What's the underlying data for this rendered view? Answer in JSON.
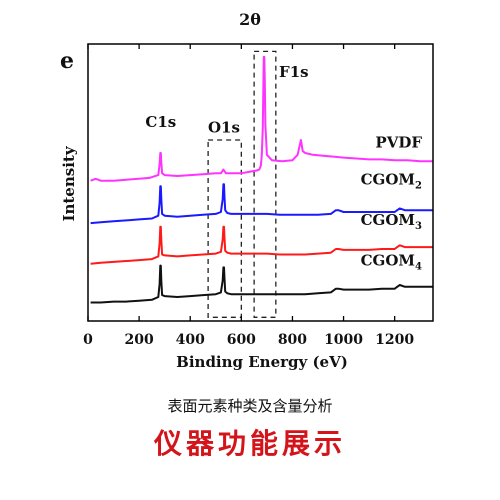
{
  "figure": {
    "cut_label": "2θ",
    "panel_label": "e",
    "caption": "表面元素种类及含量分析",
    "banner": "仪器功能展示"
  },
  "chart_data": {
    "type": "line",
    "xlabel": "Binding Energy (eV)",
    "ylabel": "Intensity",
    "xlim": [
      0,
      1350
    ],
    "xticks": [
      0,
      200,
      400,
      600,
      800,
      1000,
      1200
    ],
    "yticks": false,
    "grid": false,
    "legend": "none",
    "peak_labels": [
      {
        "text": "C1s",
        "x": 285
      },
      {
        "text": "O1s",
        "x": 532
      },
      {
        "text": "F1s",
        "x": 688
      }
    ],
    "dashed_regions": [
      [
        470,
        600
      ],
      [
        650,
        735
      ]
    ],
    "series": [
      {
        "name": "PVDF",
        "label": "PVDF",
        "label_sub": "",
        "color": "#ff33ff",
        "baseline": 0.76,
        "x": [
          10,
          30,
          50,
          100,
          150,
          200,
          240,
          275,
          280,
          283,
          285,
          287,
          290,
          300,
          350,
          400,
          450,
          500,
          520,
          530,
          535,
          540,
          560,
          600,
          640,
          660,
          670,
          676,
          680,
          684,
          686,
          688,
          690,
          692,
          694,
          700,
          720,
          760,
          800,
          820,
          830,
          833,
          835,
          840,
          850,
          880,
          920,
          960,
          1000,
          1050,
          1100,
          1150,
          1200,
          1250,
          1300,
          1350
        ],
        "y": [
          0.76,
          0.77,
          0.76,
          0.76,
          0.765,
          0.77,
          0.775,
          0.79,
          0.85,
          0.91,
          0.91,
          0.86,
          0.8,
          0.79,
          0.785,
          0.79,
          0.795,
          0.8,
          0.8,
          0.82,
          0.81,
          0.8,
          0.8,
          0.8,
          0.81,
          0.815,
          0.82,
          0.84,
          0.9,
          1.05,
          1.25,
          1.43,
          1.43,
          1.3,
          1.06,
          0.9,
          0.87,
          0.865,
          0.87,
          0.9,
          0.96,
          0.98,
          0.965,
          0.92,
          0.91,
          0.9,
          0.895,
          0.89,
          0.885,
          0.88,
          0.875,
          0.875,
          0.87,
          0.87,
          0.865,
          0.865
        ]
      },
      {
        "name": "CGOM2",
        "label": "CGOM",
        "label_sub": "2",
        "color": "#1a1aff",
        "baseline": 0.53,
        "x": [
          10,
          50,
          100,
          150,
          200,
          250,
          275,
          280,
          283,
          285,
          287,
          290,
          300,
          350,
          400,
          450,
          500,
          520,
          527,
          530,
          532,
          534,
          537,
          545,
          560,
          600,
          650,
          700,
          750,
          800,
          850,
          900,
          950,
          970,
          980,
          1000,
          1050,
          1100,
          1150,
          1200,
          1210,
          1220,
          1240,
          1300,
          1350
        ],
        "y": [
          0.53,
          0.535,
          0.54,
          0.545,
          0.55,
          0.555,
          0.57,
          0.64,
          0.73,
          0.73,
          0.66,
          0.58,
          0.57,
          0.565,
          0.57,
          0.575,
          0.58,
          0.59,
          0.66,
          0.74,
          0.74,
          0.67,
          0.6,
          0.585,
          0.58,
          0.58,
          0.58,
          0.58,
          0.575,
          0.575,
          0.575,
          0.575,
          0.58,
          0.6,
          0.6,
          0.59,
          0.59,
          0.59,
          0.59,
          0.59,
          0.6,
          0.61,
          0.6,
          0.6,
          0.6
        ]
      },
      {
        "name": "CGOM3",
        "label": "CGOM",
        "label_sub": "3",
        "color": "#ff1a1a",
        "baseline": 0.31,
        "x": [
          10,
          50,
          100,
          150,
          200,
          250,
          275,
          280,
          283,
          285,
          287,
          290,
          300,
          350,
          400,
          450,
          500,
          520,
          527,
          530,
          532,
          534,
          537,
          545,
          560,
          600,
          650,
          700,
          750,
          800,
          850,
          900,
          950,
          970,
          980,
          1000,
          1050,
          1100,
          1150,
          1200,
          1210,
          1220,
          1240,
          1300,
          1350
        ],
        "y": [
          0.31,
          0.315,
          0.32,
          0.325,
          0.33,
          0.335,
          0.35,
          0.42,
          0.51,
          0.51,
          0.44,
          0.36,
          0.355,
          0.35,
          0.355,
          0.36,
          0.365,
          0.375,
          0.44,
          0.51,
          0.51,
          0.45,
          0.38,
          0.37,
          0.365,
          0.365,
          0.365,
          0.365,
          0.36,
          0.36,
          0.36,
          0.365,
          0.37,
          0.39,
          0.39,
          0.385,
          0.385,
          0.385,
          0.39,
          0.39,
          0.4,
          0.41,
          0.4,
          0.4,
          0.4
        ]
      },
      {
        "name": "CGOM4",
        "label": "CGOM",
        "label_sub": "4",
        "color": "#111111",
        "baseline": 0.1,
        "x": [
          10,
          50,
          100,
          150,
          200,
          250,
          275,
          280,
          283,
          285,
          287,
          290,
          300,
          350,
          400,
          450,
          500,
          520,
          527,
          530,
          532,
          534,
          537,
          545,
          560,
          600,
          650,
          700,
          750,
          800,
          850,
          900,
          950,
          970,
          980,
          1000,
          1050,
          1100,
          1150,
          1200,
          1210,
          1220,
          1240,
          1300,
          1350
        ],
        "y": [
          0.1,
          0.1,
          0.105,
          0.105,
          0.11,
          0.115,
          0.13,
          0.2,
          0.3,
          0.3,
          0.22,
          0.14,
          0.135,
          0.13,
          0.135,
          0.14,
          0.145,
          0.155,
          0.22,
          0.29,
          0.29,
          0.23,
          0.16,
          0.15,
          0.145,
          0.145,
          0.145,
          0.145,
          0.145,
          0.145,
          0.145,
          0.15,
          0.155,
          0.175,
          0.175,
          0.17,
          0.17,
          0.17,
          0.175,
          0.175,
          0.185,
          0.195,
          0.185,
          0.185,
          0.185
        ]
      }
    ]
  }
}
